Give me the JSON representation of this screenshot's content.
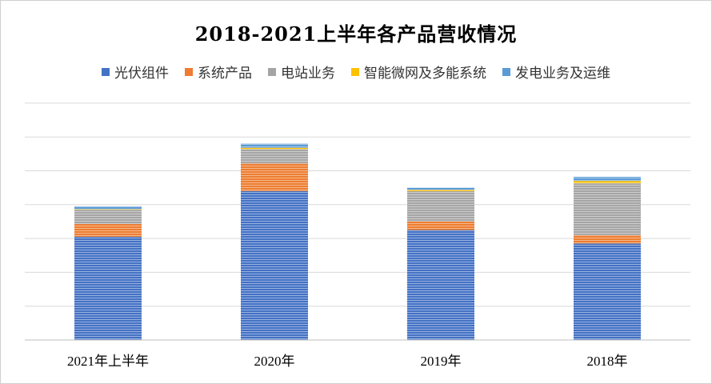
{
  "chart_data": {
    "type": "bar",
    "stacked": true,
    "title": "2018-2021上半年各产品营收情况",
    "xlabel": "",
    "ylabel": "",
    "categories": [
      "2021年上半年",
      "2020年",
      "2019年",
      "2018年"
    ],
    "ylim": [
      0,
      7
    ],
    "y_tick_labels_visible": false,
    "grid": true,
    "legend_position": "top",
    "series": [
      {
        "name": "光伏组件",
        "color": "#4472C4",
        "values": [
          3.05,
          4.4,
          3.25,
          2.85
        ]
      },
      {
        "name": "系统产品",
        "color": "#ED7D31",
        "values": [
          0.38,
          0.82,
          0.25,
          0.25
        ]
      },
      {
        "name": "电站业务",
        "color": "#A5A5A5",
        "values": [
          0.42,
          0.42,
          0.9,
          1.53
        ]
      },
      {
        "name": "智能微网及多能系统",
        "color": "#FFC000",
        "values": [
          0.02,
          0.04,
          0.04,
          0.07
        ]
      },
      {
        "name": "发电业务及运维",
        "color": "#5B9BD5",
        "values": [
          0.08,
          0.12,
          0.06,
          0.12
        ]
      }
    ]
  }
}
